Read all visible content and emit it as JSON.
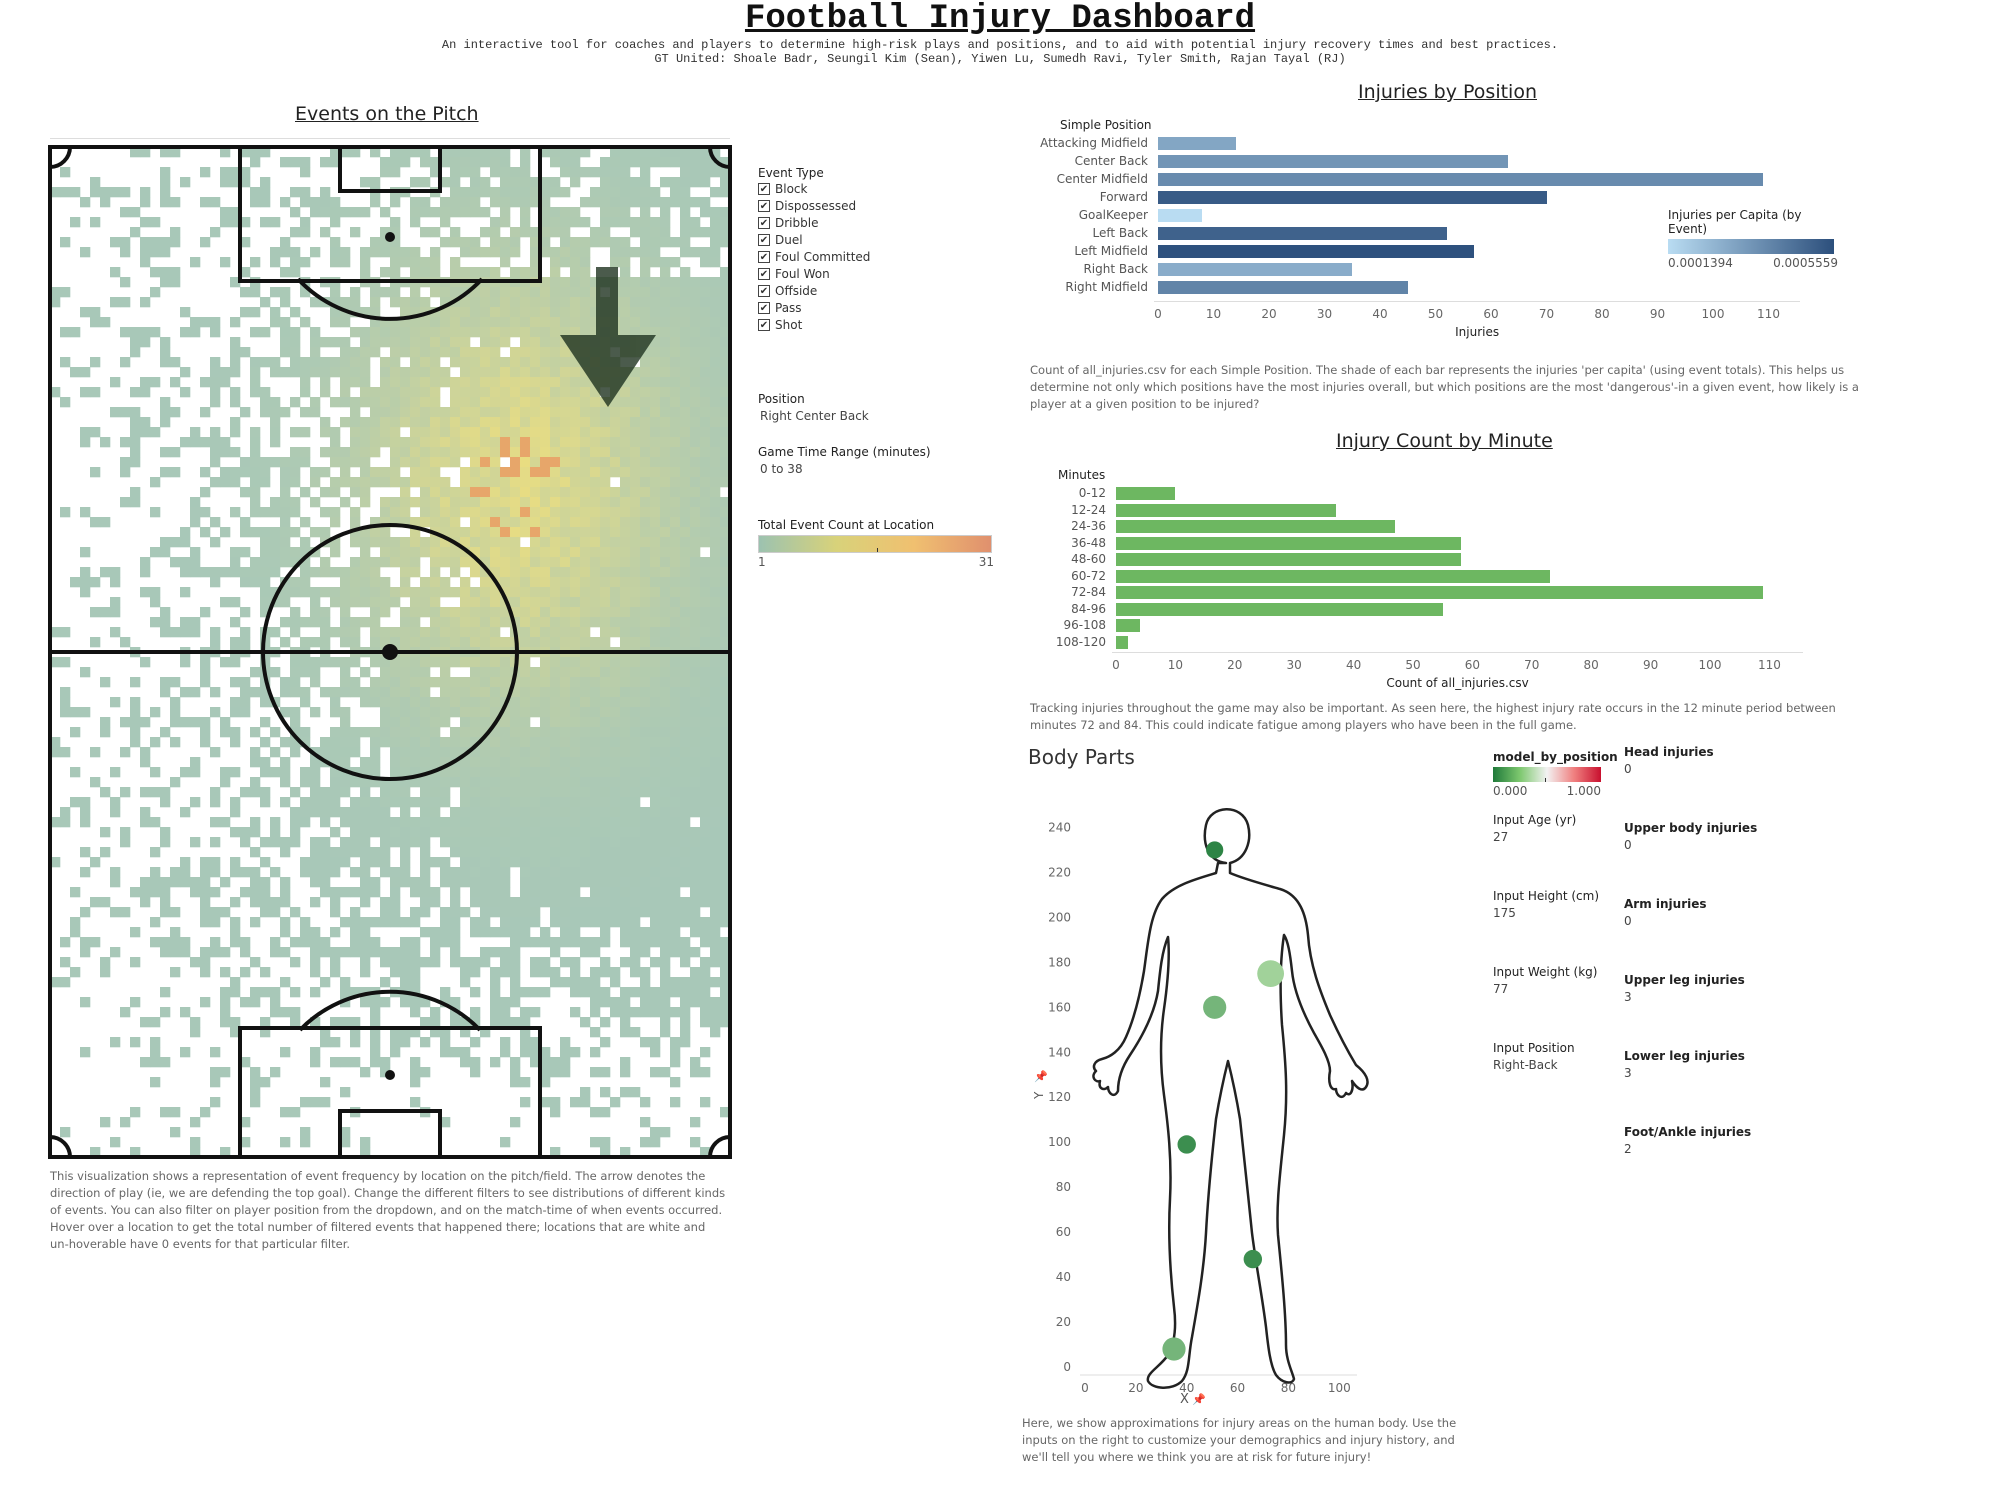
{
  "header": {
    "title": "Football Injury Dashboard",
    "subtitle_line1": "An interactive tool for coaches and players to determine high-risk plays and positions, and to aid with potential injury recovery times and best practices.",
    "subtitle_line2": "GT United: Shoale Badr, Seungil Kim (Sean), Yiwen Lu, Sumedh Ravi, Tyler Smith, Rajan Tayal (RJ)"
  },
  "pitch": {
    "title": "Events on the Pitch",
    "description_lines": [
      "This visualization shows a representation of event frequency by location on the pitch/field. The arrow denotes the",
      "direction of play (ie, we are defending the top goal). Change the different filters to see distributions of different kinds",
      "of events. You can also filter on player position from the dropdown, and on the match-time of when events occurred.",
      "Hover over a location to get the total number of filtered events that happened there; locations that are white and",
      "un-hoverable have 0 events for that particular filter."
    ],
    "colors": {
      "low": "#a8c8b8",
      "mid": "#f2e07a",
      "high": "#e08060"
    }
  },
  "filters": {
    "event_type_title": "Event Type",
    "event_types": [
      "Block",
      "Dispossessed",
      "Dribble",
      "Duel",
      "Foul Committed",
      "Foul Won",
      "Offside",
      "Pass",
      "Shot"
    ],
    "check_mark": "✔",
    "position_title": "Position",
    "position_value": "Right Center Back",
    "time_title": "Game Time Range (minutes)",
    "time_value": "0 to 38",
    "legend_title": "Total Event Count at Location",
    "legend_min": "1",
    "legend_max": "31"
  },
  "injuries_by_position": {
    "title": "Injuries by Position",
    "axis_header": "Simple Position",
    "xlabel": "Injuries",
    "legend_title": "Injuries per Capita (by Event)",
    "legend_min": "0.0001394",
    "legend_max": "0.0005559",
    "description_lines": [
      "Count of all_injuries.csv for each Simple Position.  The shade of each bar represents the injuries 'per capita' (using event totals). This helps us",
      "determine not only which positions have the most injuries overall, but which positions are the most 'dangerous'-in a given event, how likely is a",
      "player at a given position to be injured?"
    ]
  },
  "injuries_by_minute": {
    "title": "Injury Count by Minute",
    "axis_header": "Minutes",
    "xlabel": "Count of all_injuries.csv",
    "description_lines": [
      "Tracking injuries throughout the game may also be important. As seen here, the highest injury rate occurs in the 12 minute period between",
      "minutes 72 and 84. This could indicate fatigue among players who have been in the full game."
    ]
  },
  "body_parts": {
    "title": "Body Parts",
    "xlabel": "X",
    "ylabel": "Y",
    "legend_title": "model_by_position",
    "legend_min": "0.000",
    "legend_max": "1.000",
    "inputs": [
      {
        "label": "Input Age (yr)",
        "value": "27"
      },
      {
        "label": "Input Height (cm)",
        "value": "175"
      },
      {
        "label": "Input Weight (kg)",
        "value": "77"
      },
      {
        "label": "Input Position",
        "value": "Right-Back"
      }
    ],
    "injury_counts": [
      {
        "label": "Head injuries",
        "value": "0"
      },
      {
        "label": "Upper body injuries",
        "value": "0"
      },
      {
        "label": "Arm injuries",
        "value": "0"
      },
      {
        "label": "Upper leg injuries",
        "value": "3"
      },
      {
        "label": "Lower leg injuries",
        "value": "3"
      },
      {
        "label": "Foot/Ankle injuries",
        "value": "2"
      }
    ],
    "description_lines": [
      "Here, we show approximations for injury areas on the human body. Use the",
      "inputs on the right to customize your demographics and injury history, and",
      "we'll tell you where we think you are at risk for future injury!"
    ]
  },
  "chart_data": [
    {
      "type": "bar",
      "title": "Injuries by Position",
      "orientation": "horizontal",
      "categories": [
        "Attacking Midfield",
        "Center Back",
        "Center Midfield",
        "Forward",
        "GoalKeeper",
        "Left Back",
        "Left Midfield",
        "Right Back",
        "Right Midfield"
      ],
      "values": [
        14,
        63,
        109,
        70,
        8,
        52,
        57,
        35,
        45
      ],
      "per_capita_shade": [
        0.0003,
        0.00035,
        0.00038,
        0.00052,
        0.00014,
        0.0005,
        0.00055,
        0.00028,
        0.0004
      ],
      "xlabel": "Injuries",
      "ylabel": "Simple Position",
      "xlim": [
        0,
        115
      ],
      "xticks": [
        0,
        10,
        20,
        30,
        40,
        50,
        60,
        70,
        80,
        90,
        100,
        110
      ],
      "legend": "top-right"
    },
    {
      "type": "bar",
      "title": "Injury Count by Minute",
      "orientation": "horizontal",
      "categories": [
        "0-12",
        "12-24",
        "24-36",
        "36-48",
        "48-60",
        "60-72",
        "72-84",
        "84-96",
        "96-108",
        "108-120"
      ],
      "values": [
        10,
        37,
        47,
        58,
        58,
        73,
        109,
        55,
        4,
        2
      ],
      "color": "#6db761",
      "xlabel": "Count of all_injuries.csv",
      "ylabel": "Minutes",
      "xlim": [
        0,
        115
      ],
      "xticks": [
        0,
        10,
        20,
        30,
        40,
        50,
        60,
        70,
        80,
        90,
        100,
        110
      ]
    },
    {
      "type": "scatter",
      "title": "Body Parts",
      "xlabel": "X",
      "ylabel": "Y",
      "xlim": [
        0,
        105
      ],
      "ylim": [
        0,
        250
      ],
      "xticks": [
        0,
        20,
        40,
        60,
        80,
        100
      ],
      "yticks": [
        0,
        20,
        40,
        60,
        80,
        100,
        120,
        140,
        160,
        180,
        200,
        220,
        240
      ],
      "points": [
        {
          "x": 51,
          "y": 230,
          "value": 0.05
        },
        {
          "x": 51,
          "y": 160,
          "value": 0.3
        },
        {
          "x": 73,
          "y": 175,
          "value": 0.45
        },
        {
          "x": 40,
          "y": 99,
          "value": 0.1
        },
        {
          "x": 66,
          "y": 48,
          "value": 0.1
        },
        {
          "x": 35,
          "y": 8,
          "value": 0.3
        }
      ]
    }
  ]
}
